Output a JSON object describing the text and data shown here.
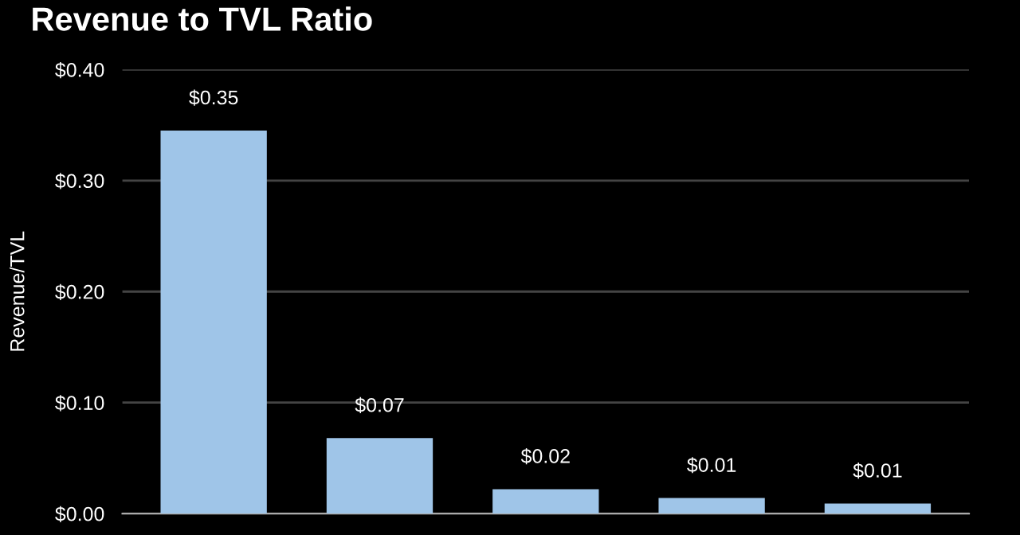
{
  "chart_data": {
    "type": "bar",
    "title": "Revenue to TVL Ratio",
    "ylabel": "Revenue/TVL",
    "categories": [
      null,
      null,
      null,
      null,
      null
    ],
    "values": [
      0.345,
      0.068,
      0.022,
      0.014,
      0.009
    ],
    "value_labels": [
      "$0.35",
      "$0.07",
      "$0.02",
      "$0.01",
      "$0.01"
    ],
    "color": "#9fc5e8",
    "ylim": [
      0,
      0.4
    ],
    "yticks": [
      {
        "value": 0,
        "label": "$0.00"
      },
      {
        "value": 0.1,
        "label": "$0.10"
      },
      {
        "value": 0.2,
        "label": "$0.20"
      },
      {
        "value": 0.3,
        "label": "$0.30"
      },
      {
        "value": 0.4,
        "label": "$0.40"
      }
    ],
    "grid": "y",
    "legend": false
  }
}
